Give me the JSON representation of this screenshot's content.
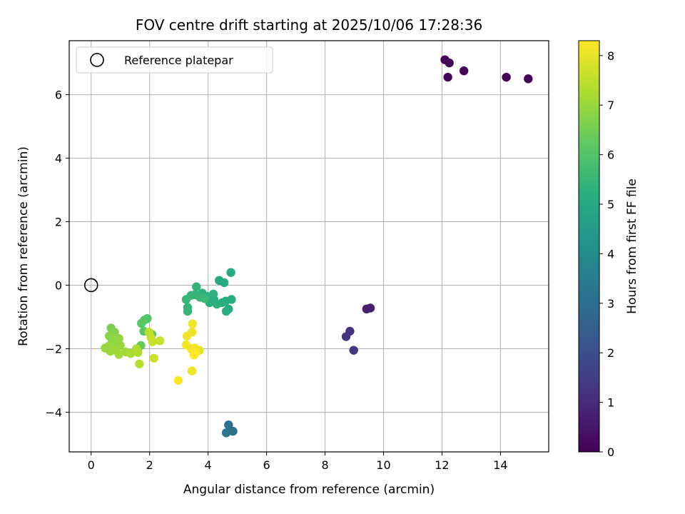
{
  "chart_data": {
    "type": "scatter",
    "title": "FOV centre drift starting at 2025/10/06 17:28:36",
    "xlabel": "Angular distance from reference (arcmin)",
    "ylabel": "Rotation from reference (arcmin)",
    "xlim": [
      -0.75,
      15.65
    ],
    "ylim": [
      -5.25,
      7.7
    ],
    "xticks": [
      0,
      2,
      4,
      6,
      8,
      10,
      12,
      14
    ],
    "yticks": [
      -4,
      -2,
      0,
      2,
      4,
      6
    ],
    "grid": true,
    "legend": {
      "position": "top-left",
      "entries": [
        "Reference platepar"
      ]
    },
    "reference": {
      "x": 0,
      "y": 0,
      "label": "Reference platepar"
    },
    "colorbar": {
      "label": "Hours from first FF file",
      "min": 0,
      "max": 8.3,
      "ticks": [
        0,
        1,
        2,
        3,
        4,
        5,
        6,
        7,
        8
      ],
      "colormap": "viridis"
    },
    "points": [
      {
        "x": 12.1,
        "y": 7.1,
        "h": 0.05
      },
      {
        "x": 12.25,
        "y": 7.0,
        "h": 0.1
      },
      {
        "x": 12.2,
        "y": 6.55,
        "h": 0.15
      },
      {
        "x": 12.75,
        "y": 6.75,
        "h": 0.1
      },
      {
        "x": 14.2,
        "y": 6.55,
        "h": 0.05
      },
      {
        "x": 14.95,
        "y": 6.5,
        "h": 0.05
      },
      {
        "x": 9.55,
        "y": -0.72,
        "h": 0.7
      },
      {
        "x": 9.42,
        "y": -0.75,
        "h": 0.75
      },
      {
        "x": 8.85,
        "y": -1.45,
        "h": 1.2
      },
      {
        "x": 8.72,
        "y": -1.62,
        "h": 1.25
      },
      {
        "x": 8.98,
        "y": -2.05,
        "h": 1.3
      },
      {
        "x": 4.7,
        "y": -4.4,
        "h": 3.1
      },
      {
        "x": 4.62,
        "y": -4.65,
        "h": 3.2
      },
      {
        "x": 4.85,
        "y": -4.6,
        "h": 3.05
      },
      {
        "x": 4.78,
        "y": 0.4,
        "h": 5.0
      },
      {
        "x": 4.38,
        "y": 0.15,
        "h": 5.05
      },
      {
        "x": 4.55,
        "y": 0.08,
        "h": 5.1
      },
      {
        "x": 4.8,
        "y": -0.45,
        "h": 5.1
      },
      {
        "x": 4.6,
        "y": -0.5,
        "h": 5.15
      },
      {
        "x": 4.48,
        "y": -0.55,
        "h": 5.2
      },
      {
        "x": 4.7,
        "y": -0.75,
        "h": 5.1
      },
      {
        "x": 4.62,
        "y": -0.82,
        "h": 5.15
      },
      {
        "x": 4.2,
        "y": -0.45,
        "h": 5.2
      },
      {
        "x": 4.05,
        "y": -0.55,
        "h": 5.2
      },
      {
        "x": 4.3,
        "y": -0.6,
        "h": 5.25
      },
      {
        "x": 3.95,
        "y": -0.35,
        "h": 5.25
      },
      {
        "x": 4.18,
        "y": -0.28,
        "h": 5.3
      },
      {
        "x": 3.8,
        "y": -0.25,
        "h": 5.35
      },
      {
        "x": 3.6,
        "y": -0.05,
        "h": 5.4
      },
      {
        "x": 3.55,
        "y": -0.3,
        "h": 5.4
      },
      {
        "x": 3.42,
        "y": -0.32,
        "h": 5.45
      },
      {
        "x": 3.25,
        "y": -0.45,
        "h": 5.5
      },
      {
        "x": 3.3,
        "y": -0.7,
        "h": 5.4
      },
      {
        "x": 3.3,
        "y": -0.82,
        "h": 5.45
      },
      {
        "x": 3.72,
        "y": -0.38,
        "h": 5.5
      },
      {
        "x": 3.88,
        "y": -0.42,
        "h": 5.55
      },
      {
        "x": 1.92,
        "y": -1.05,
        "h": 6.0
      },
      {
        "x": 1.82,
        "y": -1.1,
        "h": 6.05
      },
      {
        "x": 1.72,
        "y": -1.2,
        "h": 6.1
      },
      {
        "x": 1.8,
        "y": -1.45,
        "h": 6.1
      },
      {
        "x": 2.08,
        "y": -1.55,
        "h": 6.2
      },
      {
        "x": 1.7,
        "y": -1.9,
        "h": 6.3
      },
      {
        "x": 0.68,
        "y": -1.35,
        "h": 6.6
      },
      {
        "x": 0.8,
        "y": -1.48,
        "h": 6.7
      },
      {
        "x": 0.62,
        "y": -1.6,
        "h": 6.8
      },
      {
        "x": 0.72,
        "y": -1.75,
        "h": 6.8
      },
      {
        "x": 0.95,
        "y": -1.68,
        "h": 6.9
      },
      {
        "x": 0.85,
        "y": -1.85,
        "h": 6.9
      },
      {
        "x": 1.0,
        "y": -1.9,
        "h": 6.95
      },
      {
        "x": 0.48,
        "y": -1.98,
        "h": 7.0
      },
      {
        "x": 0.6,
        "y": -1.92,
        "h": 7.0
      },
      {
        "x": 0.66,
        "y": -2.08,
        "h": 7.0
      },
      {
        "x": 0.85,
        "y": -2.05,
        "h": 7.05
      },
      {
        "x": 0.95,
        "y": -2.18,
        "h": 7.1
      },
      {
        "x": 1.18,
        "y": -2.1,
        "h": 7.1
      },
      {
        "x": 1.35,
        "y": -2.15,
        "h": 7.2
      },
      {
        "x": 1.55,
        "y": -2.0,
        "h": 7.3
      },
      {
        "x": 1.6,
        "y": -2.12,
        "h": 7.3
      },
      {
        "x": 1.65,
        "y": -2.48,
        "h": 7.35
      },
      {
        "x": 1.98,
        "y": -1.48,
        "h": 7.5
      },
      {
        "x": 2.05,
        "y": -1.65,
        "h": 7.55
      },
      {
        "x": 2.1,
        "y": -1.78,
        "h": 7.6
      },
      {
        "x": 2.35,
        "y": -1.75,
        "h": 7.6
      },
      {
        "x": 2.15,
        "y": -2.3,
        "h": 7.65
      },
      {
        "x": 3.47,
        "y": -1.22,
        "h": 8.1
      },
      {
        "x": 3.45,
        "y": -1.48,
        "h": 8.1
      },
      {
        "x": 3.28,
        "y": -1.6,
        "h": 8.15
      },
      {
        "x": 3.25,
        "y": -1.88,
        "h": 8.2
      },
      {
        "x": 3.42,
        "y": -2.0,
        "h": 8.15
      },
      {
        "x": 3.55,
        "y": -1.98,
        "h": 8.2
      },
      {
        "x": 3.7,
        "y": -2.05,
        "h": 8.0
      },
      {
        "x": 3.58,
        "y": -2.12,
        "h": 8.25
      },
      {
        "x": 3.52,
        "y": -2.2,
        "h": 8.3
      },
      {
        "x": 3.45,
        "y": -2.7,
        "h": 8.1
      },
      {
        "x": 2.98,
        "y": -3.0,
        "h": 8.25
      }
    ]
  }
}
